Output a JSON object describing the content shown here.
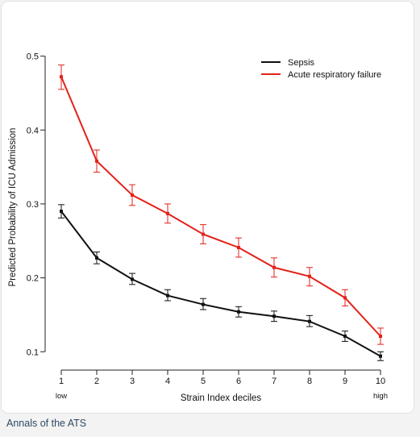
{
  "caption": "Annals of the ATS",
  "colors": {
    "sepsis": "#111111",
    "arf": "#e32119"
  },
  "chart_data": {
    "type": "line",
    "xlabel": "Strain Index deciles",
    "ylabel": "Predicted Probability of ICU Admission",
    "x": [
      1,
      2,
      3,
      4,
      5,
      6,
      7,
      8,
      9,
      10
    ],
    "x_ticks": [
      "1",
      "2",
      "3",
      "4",
      "5",
      "6",
      "7",
      "8",
      "9",
      "10"
    ],
    "x_sublabels": {
      "low": "low",
      "high": "high"
    },
    "y_ticks": [
      "0.1",
      "0.2",
      "0.3",
      "0.4",
      "0.5"
    ],
    "y_tick_values": [
      0.1,
      0.2,
      0.3,
      0.4,
      0.5
    ],
    "xlim": [
      1,
      10
    ],
    "ylim": [
      0.085,
      0.505
    ],
    "grid": false,
    "legend_position": "top-right",
    "series": [
      {
        "name": "Sepsis",
        "color": "#111111",
        "values": [
          0.29,
          0.227,
          0.198,
          0.176,
          0.164,
          0.154,
          0.148,
          0.141,
          0.121,
          0.094
        ],
        "lower": [
          0.281,
          0.219,
          0.191,
          0.169,
          0.157,
          0.147,
          0.141,
          0.134,
          0.114,
          0.088
        ],
        "upper": [
          0.299,
          0.235,
          0.206,
          0.184,
          0.172,
          0.161,
          0.155,
          0.149,
          0.128,
          0.1
        ]
      },
      {
        "name": "Acute respiratory failure",
        "color": "#e32119",
        "values": [
          0.472,
          0.358,
          0.312,
          0.287,
          0.259,
          0.241,
          0.214,
          0.202,
          0.173,
          0.121
        ],
        "lower": [
          0.455,
          0.343,
          0.298,
          0.274,
          0.246,
          0.228,
          0.201,
          0.189,
          0.162,
          0.11
        ],
        "upper": [
          0.488,
          0.373,
          0.326,
          0.3,
          0.272,
          0.254,
          0.227,
          0.214,
          0.184,
          0.132
        ]
      }
    ]
  }
}
